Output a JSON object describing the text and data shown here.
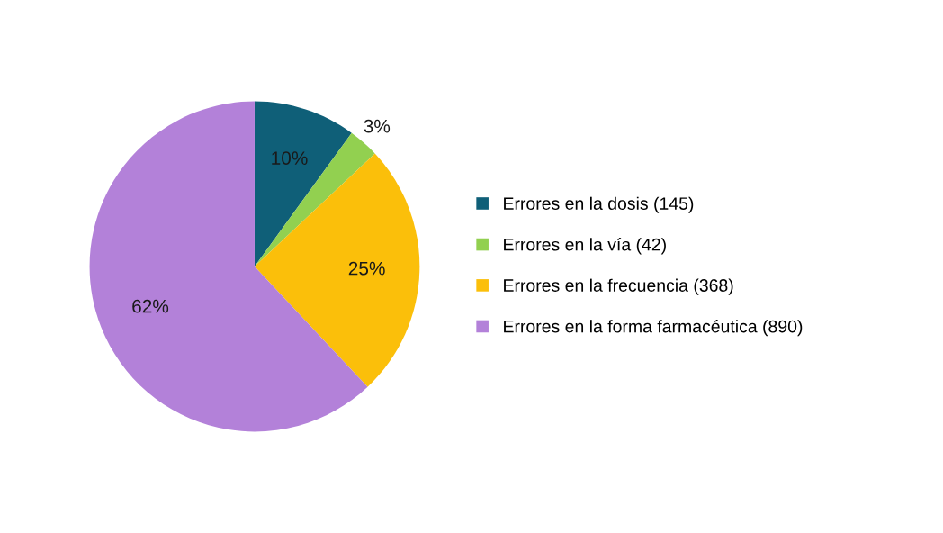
{
  "chart_data": {
    "type": "pie",
    "categories": [
      "Errores en la dosis (145)",
      "Errores en la vía (42)",
      "Errores en la frecuencia (368)",
      "Errores en la forma farmacéutica (890)"
    ],
    "values": [
      10,
      3,
      25,
      62
    ],
    "value_labels": [
      "10%",
      "3%",
      "25%",
      "62%"
    ],
    "colors": [
      "#0f5f78",
      "#92d050",
      "#fbbf0a",
      "#b381d9"
    ],
    "legend": "right"
  }
}
